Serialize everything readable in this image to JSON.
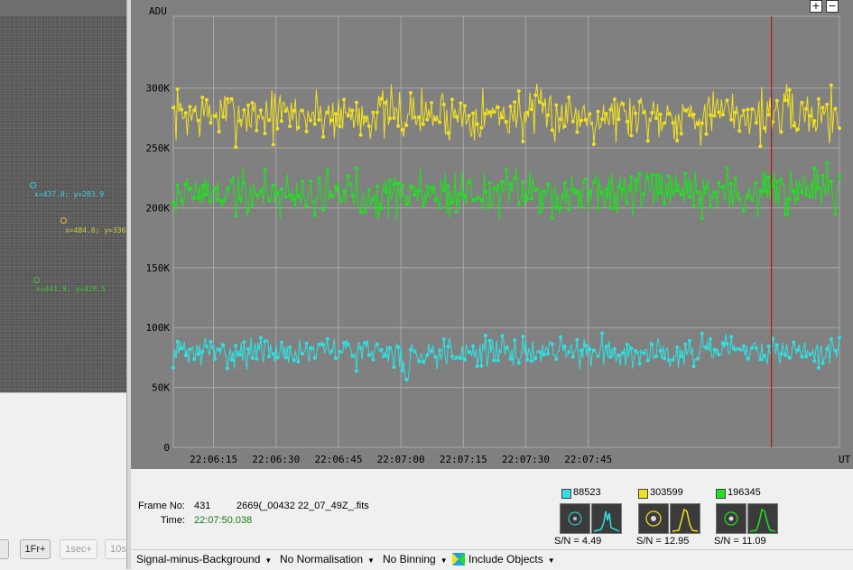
{
  "left_pane": {
    "stars": [
      {
        "label": "x=437.0; y=283.9",
        "color": "#3ad0e0"
      },
      {
        "label": "x=484.6; y=336",
        "color": "#d8cc30"
      },
      {
        "label": "x=441.9; y=428.5",
        "color": "#40c040"
      }
    ],
    "buttons": [
      {
        "label": "",
        "disabled": false
      },
      {
        "label": "1Fr+",
        "disabled": false
      },
      {
        "label": "1sec+",
        "disabled": true
      },
      {
        "label": "10s",
        "disabled": true
      }
    ]
  },
  "zoom": {
    "in_label": "+",
    "out_label": "−"
  },
  "chart_data": {
    "type": "line",
    "ylabel": "ADU",
    "xunit": "UT",
    "ylim": [
      0,
      360000
    ],
    "yticks": [
      0,
      50000,
      100000,
      150000,
      200000,
      250000,
      300000
    ],
    "ytick_labels": [
      "0",
      "50K",
      "100K",
      "150K",
      "200K",
      "250K",
      "300K"
    ],
    "xtick_labels": [
      "22:06:15",
      "22:06:30",
      "22:06:45",
      "22:07:00",
      "22:07:15",
      "22:07:30",
      "22:07:45"
    ],
    "x_range_frames": [
      0,
      480
    ],
    "xtick_frames": [
      29,
      74,
      119,
      164,
      209,
      254,
      299
    ],
    "current_frame": 431,
    "grid": true,
    "series": [
      {
        "color": "#f0e020",
        "mean": 278000,
        "spread": 32000,
        "seed": 7
      },
      {
        "color": "#20e020",
        "mean": 212000,
        "spread": 30000,
        "seed": 19
      },
      {
        "color": "#30e0e0",
        "mean": 80000,
        "spread": 18000,
        "seed": 31
      }
    ]
  },
  "info": {
    "frame_label": "Frame No:",
    "frame_number": "431",
    "frame_file": "2669(_00432 22_07_49Z_.fits",
    "time_label": "Time:",
    "time_value": "22:07:50.038"
  },
  "objects": [
    {
      "color": "#30e0e0",
      "value": "88523",
      "sn_label": "S/N =",
      "sn": "4.49"
    },
    {
      "color": "#f0e020",
      "value": "303599",
      "sn_label": "S/N =",
      "sn": "12.95"
    },
    {
      "color": "#20e020",
      "value": "196345",
      "sn_label": "S/N =",
      "sn": "11.09"
    }
  ],
  "toolbar": {
    "mode": "Signal-minus-Background",
    "normalisation": "No Normalisation",
    "binning": "No Binning",
    "include_objects": "Include Objects"
  }
}
